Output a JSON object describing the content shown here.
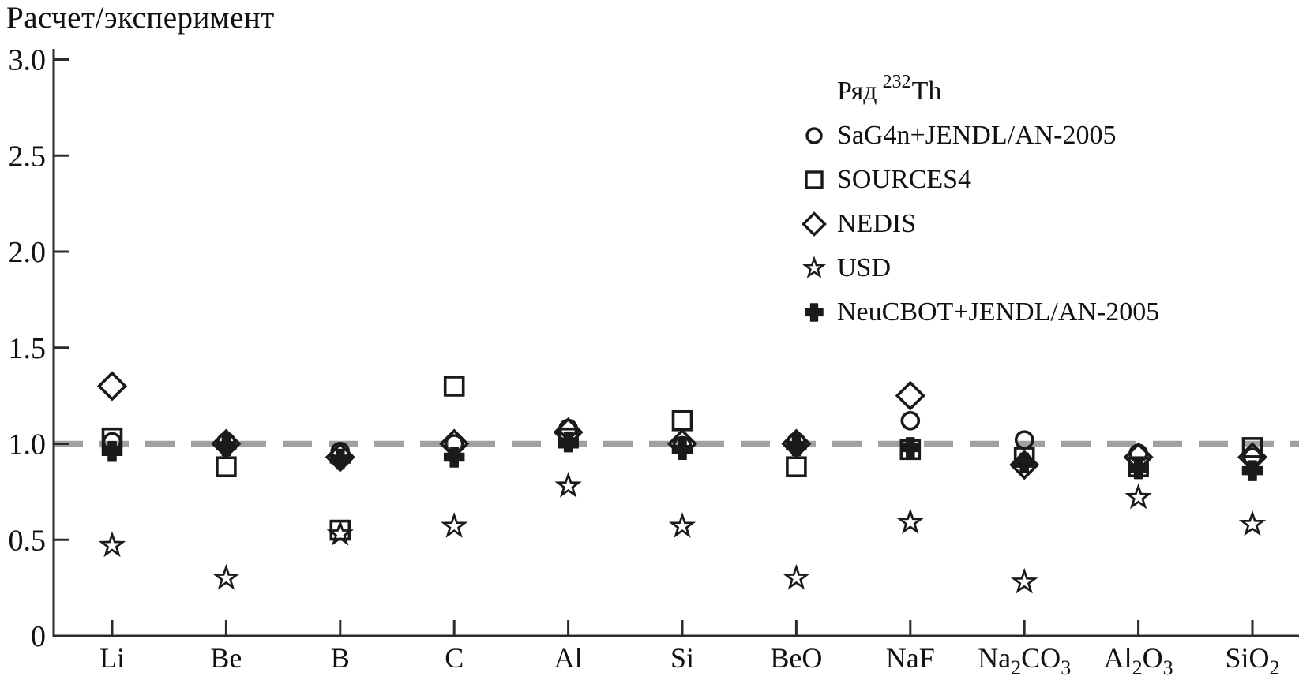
{
  "title": "Расчет/эксперимент",
  "legend": {
    "title_prefix": "Ряд",
    "title_isotope_mass": "232",
    "title_isotope_symbol": "Th",
    "items": [
      {
        "marker": "circle-icon",
        "label": "SaG4n+JENDL/AN-2005"
      },
      {
        "marker": "square-icon",
        "label": "SOURCES4"
      },
      {
        "marker": "diamond-icon",
        "label": "NEDIS"
      },
      {
        "marker": "star-icon",
        "label": "USD"
      },
      {
        "marker": "cross-icon",
        "label": "NeuCBOT+JENDL/AN-2005"
      }
    ]
  },
  "colors": {
    "marker": "#1a1a1a",
    "axis": "#2b2b2b",
    "dashed_reference_line": "#a1a1a1",
    "text": "#111111"
  },
  "chart_data": {
    "type": "scatter",
    "title": "",
    "ylabel": "Расчет/эксперимент",
    "xlabel": "",
    "ylim": [
      0,
      3.0
    ],
    "yticks": [
      0,
      0.5,
      1.0,
      1.5,
      2.0,
      2.5,
      3.0
    ],
    "reference_line": 1.0,
    "grid": false,
    "legend_position": "upper right",
    "legend_title": "Ряд 232Th",
    "categories": [
      {
        "label": "Li",
        "parts": [
          {
            "t": "Li"
          }
        ]
      },
      {
        "label": "Be",
        "parts": [
          {
            "t": "Be"
          }
        ]
      },
      {
        "label": "B",
        "parts": [
          {
            "t": "B"
          }
        ]
      },
      {
        "label": "C",
        "parts": [
          {
            "t": "C"
          }
        ]
      },
      {
        "label": "Al",
        "parts": [
          {
            "t": "Al"
          }
        ]
      },
      {
        "label": "Si",
        "parts": [
          {
            "t": "Si"
          }
        ]
      },
      {
        "label": "BeO",
        "parts": [
          {
            "t": "BeO"
          }
        ]
      },
      {
        "label": "NaF",
        "parts": [
          {
            "t": "NaF"
          }
        ]
      },
      {
        "label": "Na2CO3",
        "parts": [
          {
            "t": "Na"
          },
          {
            "t": "2",
            "sub": true
          },
          {
            "t": "CO"
          },
          {
            "t": "3",
            "sub": true
          }
        ]
      },
      {
        "label": "Al2O3",
        "parts": [
          {
            "t": "Al"
          },
          {
            "t": "2",
            "sub": true
          },
          {
            "t": "O"
          },
          {
            "t": "3",
            "sub": true
          }
        ]
      },
      {
        "label": "SiO2",
        "parts": [
          {
            "t": "SiO"
          },
          {
            "t": "2",
            "sub": true
          }
        ]
      }
    ],
    "series": [
      {
        "name": "SaG4n+JENDL/AN-2005",
        "marker": "circle",
        "values": [
          1.01,
          1.01,
          0.96,
          1.0,
          1.08,
          0.99,
          1.01,
          1.12,
          1.02,
          0.95,
          0.93
        ]
      },
      {
        "name": "SOURCES4",
        "marker": "square",
        "values": [
          1.03,
          0.88,
          0.55,
          1.3,
          1.03,
          1.12,
          0.88,
          0.97,
          0.93,
          0.88,
          0.98
        ]
      },
      {
        "name": "NEDIS",
        "marker": "diamond",
        "values": [
          1.3,
          1.0,
          0.93,
          1.0,
          1.06,
          1.0,
          1.0,
          1.25,
          0.89,
          0.93,
          0.93
        ]
      },
      {
        "name": "USD",
        "marker": "star",
        "values": [
          0.47,
          0.3,
          0.53,
          0.57,
          0.78,
          0.57,
          0.3,
          0.59,
          0.28,
          0.72,
          0.58
        ]
      },
      {
        "name": "NeuCBOT+JENDL/AN-2005",
        "marker": "cross",
        "values": [
          0.96,
          0.99,
          0.92,
          0.93,
          1.01,
          0.97,
          0.99,
          0.98,
          0.9,
          0.87,
          0.86
        ]
      }
    ]
  }
}
